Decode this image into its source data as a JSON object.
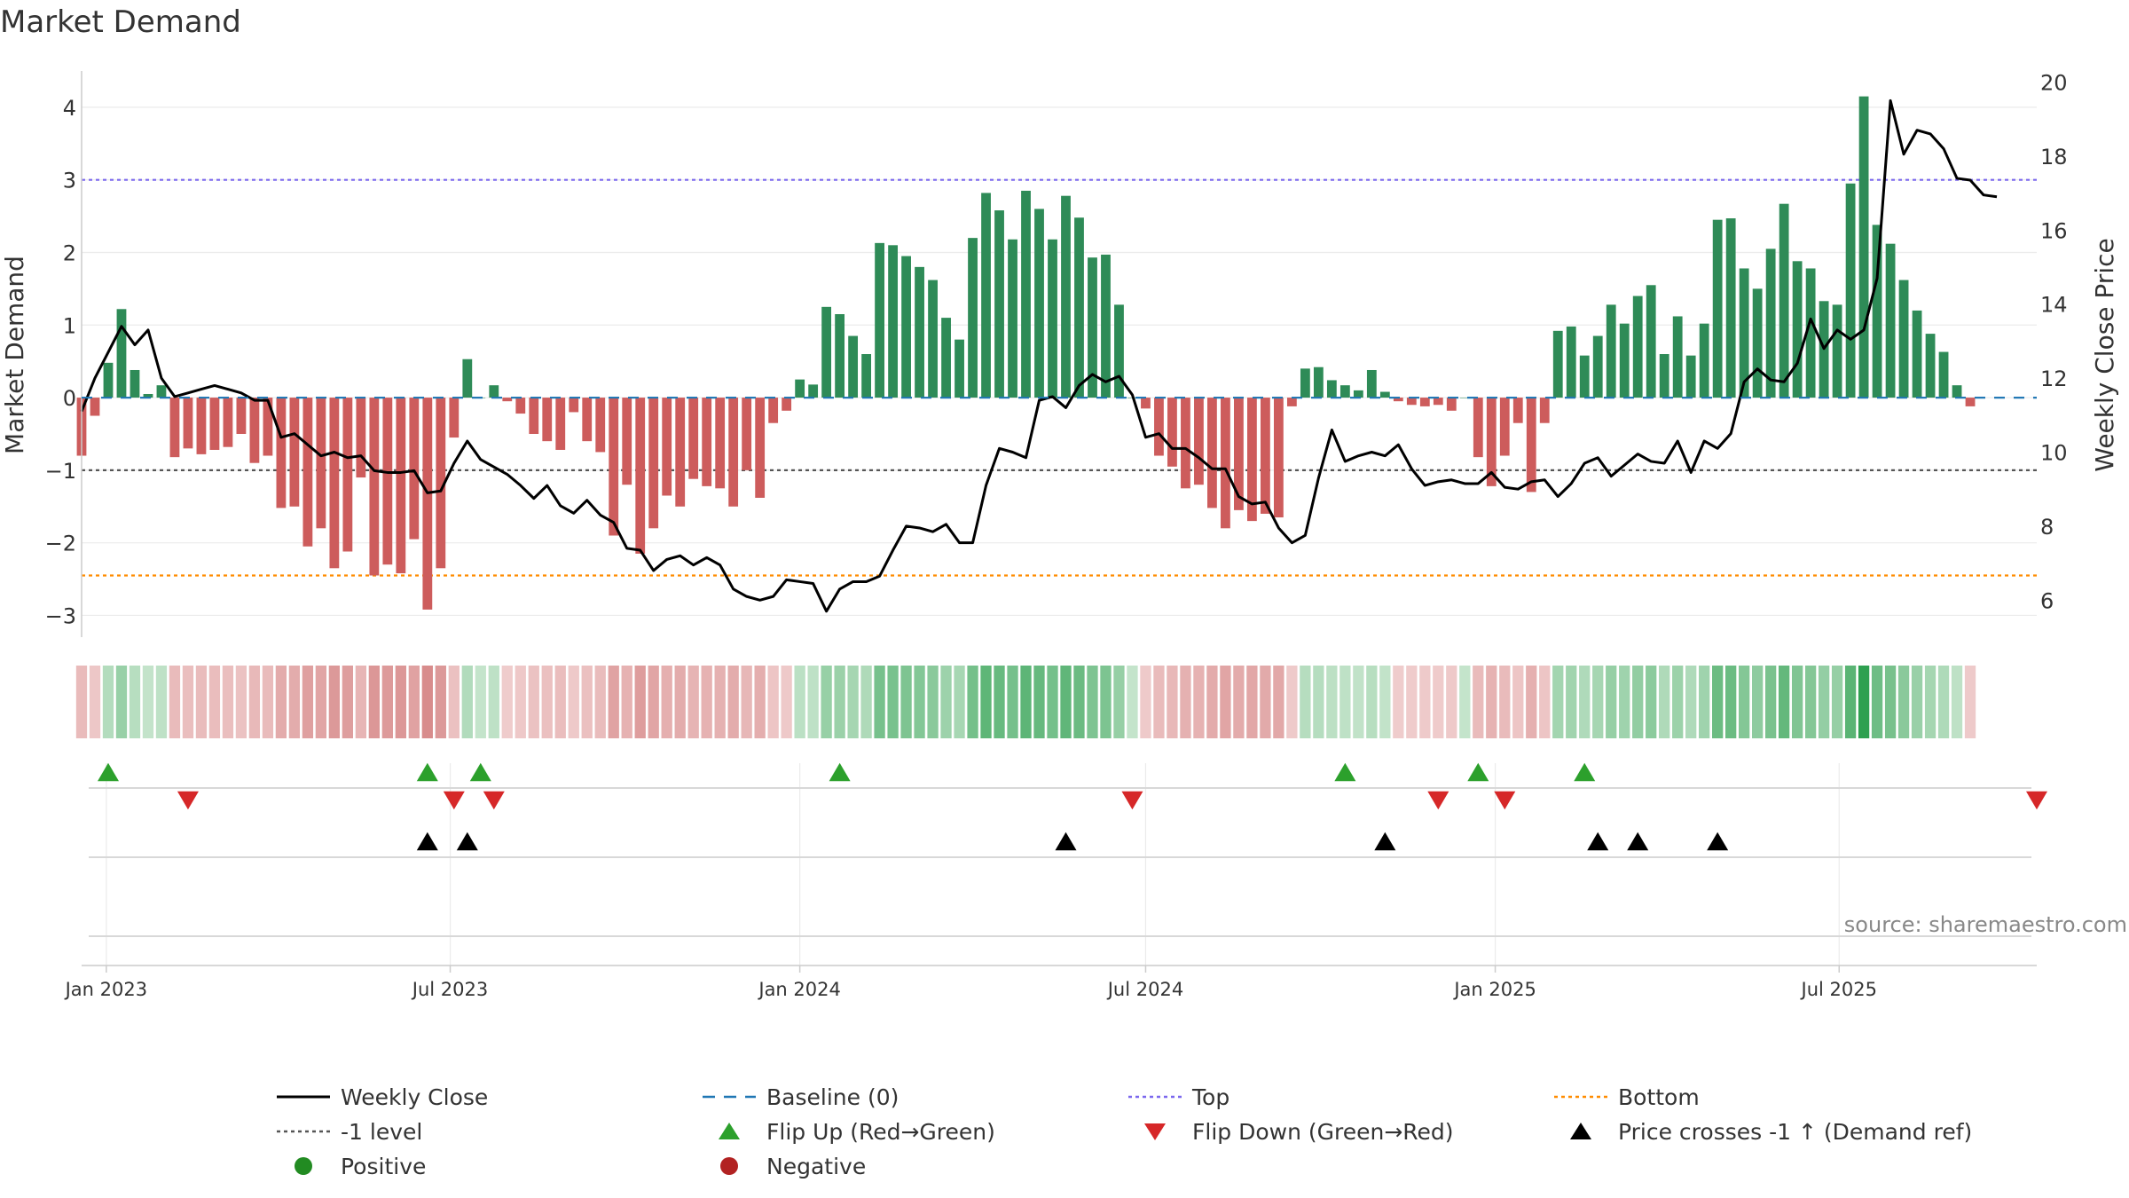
{
  "chart_data": {
    "type": "bar",
    "title": "Market Demand",
    "ylabel_left": "Market Demand",
    "ylabel_right": "Weekly Close Price",
    "source": "source: sharemaestro.com",
    "ylim_left": [
      -3.3,
      4.5
    ],
    "ylim_right": [
      5.0,
      20.3
    ],
    "y_ticks_left": [
      -3,
      -2,
      -1,
      0,
      1,
      2,
      3,
      4
    ],
    "y_tick_labels_left": [
      "−3",
      "−2",
      "−1",
      "0",
      "1",
      "2",
      "3",
      "4"
    ],
    "y_ticks_right": [
      6,
      8,
      10,
      12,
      14,
      16,
      18,
      20
    ],
    "x_start": "2022-12-19",
    "x_end": "2025-10-13",
    "x_ticks": [
      {
        "date": "2023-01-01",
        "label": "Jan 2023"
      },
      {
        "date": "2023-07-01",
        "label": "Jul 2023"
      },
      {
        "date": "2024-01-01",
        "label": "Jan 2024"
      },
      {
        "date": "2024-07-01",
        "label": "Jul 2024"
      },
      {
        "date": "2025-01-01",
        "label": "Jan 2025"
      },
      {
        "date": "2025-07-01",
        "label": "Jul 2025"
      }
    ],
    "reference_lines": {
      "top": 3.0,
      "bottom": -2.45,
      "minus_one": -1.0,
      "baseline": 0
    },
    "demand": [
      -0.8,
      -0.25,
      0.48,
      1.22,
      0.38,
      0.05,
      0.17,
      -0.82,
      -0.7,
      -0.78,
      -0.72,
      -0.68,
      -0.5,
      -0.9,
      -0.8,
      -1.52,
      -1.5,
      -2.05,
      -1.8,
      -2.35,
      -2.12,
      -1.1,
      -2.45,
      -2.3,
      -2.42,
      -1.95,
      -2.92,
      -2.35,
      -0.55,
      0.53,
      0.0,
      0.17,
      -0.05,
      -0.22,
      -0.5,
      -0.6,
      -0.72,
      -0.2,
      -0.6,
      -0.75,
      -1.9,
      -1.2,
      -2.15,
      -1.8,
      -1.35,
      -1.5,
      -1.12,
      -1.22,
      -1.25,
      -1.5,
      -1.0,
      -1.38,
      -0.35,
      -0.18,
      0.25,
      0.18,
      1.25,
      1.15,
      0.85,
      0.6,
      2.13,
      2.1,
      1.95,
      1.8,
      1.62,
      1.1,
      0.8,
      2.2,
      2.82,
      2.58,
      2.18,
      2.85,
      2.6,
      2.18,
      2.78,
      2.48,
      1.93,
      1.97,
      1.28,
      0.0,
      -0.15,
      -0.8,
      -0.95,
      -1.25,
      -1.2,
      -1.52,
      -1.8,
      -1.55,
      -1.7,
      -1.6,
      -1.65,
      -0.12,
      0.4,
      0.42,
      0.24,
      0.17,
      0.1,
      0.38,
      0.08,
      -0.05,
      -0.1,
      -0.12,
      -0.1,
      -0.18,
      0.0,
      -0.82,
      -1.22,
      -0.8,
      -0.35,
      -1.3,
      -0.35,
      0.92,
      0.98,
      0.58,
      0.85,
      1.28,
      1.02,
      1.4,
      1.55,
      0.6,
      1.12,
      0.58,
      1.02,
      2.45,
      2.47,
      1.78,
      1.5,
      2.05,
      2.67,
      1.88,
      1.78,
      1.33,
      1.28,
      2.95,
      4.15,
      2.38,
      2.12,
      1.62,
      1.2,
      0.88,
      0.63,
      0.17,
      -0.12
    ],
    "price": [
      11.1,
      12.0,
      12.7,
      13.4,
      12.9,
      13.3,
      12.0,
      11.5,
      11.6,
      11.7,
      11.8,
      11.7,
      11.6,
      11.4,
      11.4,
      10.4,
      10.5,
      10.2,
      9.9,
      10.0,
      9.85,
      9.9,
      9.5,
      9.45,
      9.45,
      9.5,
      8.9,
      8.95,
      9.7,
      10.3,
      9.8,
      9.6,
      9.4,
      9.1,
      8.75,
      9.1,
      8.55,
      8.35,
      8.7,
      8.3,
      8.1,
      7.4,
      7.35,
      6.8,
      7.1,
      7.2,
      6.95,
      7.15,
      6.95,
      6.3,
      6.1,
      6.0,
      6.1,
      6.55,
      6.5,
      6.45,
      5.7,
      6.3,
      6.5,
      6.5,
      6.65,
      7.35,
      8.0,
      7.95,
      7.85,
      8.05,
      7.55,
      7.55,
      9.1,
      10.1,
      10.0,
      9.85,
      11.4,
      11.5,
      11.2,
      11.8,
      12.1,
      11.9,
      12.05,
      11.55,
      10.4,
      10.5,
      10.1,
      10.1,
      9.85,
      9.55,
      9.55,
      8.8,
      8.6,
      8.65,
      7.95,
      7.55,
      7.75,
      9.3,
      10.6,
      9.75,
      9.9,
      10.0,
      9.9,
      10.2,
      9.55,
      9.1,
      9.2,
      9.25,
      9.15,
      9.15,
      9.45,
      9.05,
      9.0,
      9.2,
      9.25,
      8.8,
      9.15,
      9.7,
      9.85,
      9.35,
      9.65,
      9.95,
      9.75,
      9.7,
      10.3,
      9.45,
      10.3,
      10.1,
      10.5,
      11.9,
      12.25,
      11.95,
      11.9,
      12.4,
      13.6,
      12.8,
      13.3,
      13.05,
      13.3,
      14.7,
      19.5,
      18.05,
      18.7,
      18.6,
      18.2,
      17.4,
      17.35,
      16.95,
      16.9
    ],
    "flip_up_dates": [
      "2023-01-02",
      "2023-06-19",
      "2023-07-17",
      "2024-01-22",
      "2024-10-14",
      "2024-12-23",
      "2025-02-17"
    ],
    "flip_down_dates": [
      "2023-02-13",
      "2023-07-03",
      "2023-07-24",
      "2024-06-24",
      "2024-12-02",
      "2025-01-06",
      "2025-10-13"
    ],
    "cross_dates": [
      "2023-06-19",
      "2023-07-10",
      "2024-05-20",
      "2024-11-04",
      "2025-02-24",
      "2025-03-17",
      "2025-04-28"
    ],
    "legend": {
      "weekly_close": "Weekly Close",
      "baseline": "Baseline (0)",
      "top": "Top",
      "bottom": "Bottom",
      "minus_one": "-1 level",
      "flip_up": "Flip Up (Red→Green)",
      "flip_down": "Flip Down (Green→Red)",
      "cross": "Price crosses -1 ↑ (Demand ref)",
      "positive": "Positive",
      "negative": "Negative"
    },
    "colors": {
      "positive_bar": "#2e8b57",
      "negative_bar": "#cd5c5c",
      "price_line": "#000000",
      "baseline": "#1f77b4",
      "top": "#7b68ee",
      "bottom": "#ff8c00",
      "minus_one": "#555555",
      "flip_up": "#2ca02c",
      "flip_down": "#d62728",
      "cross": "#000000",
      "positive_dot": "#228b22",
      "negative_dot": "#b22222",
      "grid": "#ebebeb",
      "axis": "#cccccc"
    }
  }
}
